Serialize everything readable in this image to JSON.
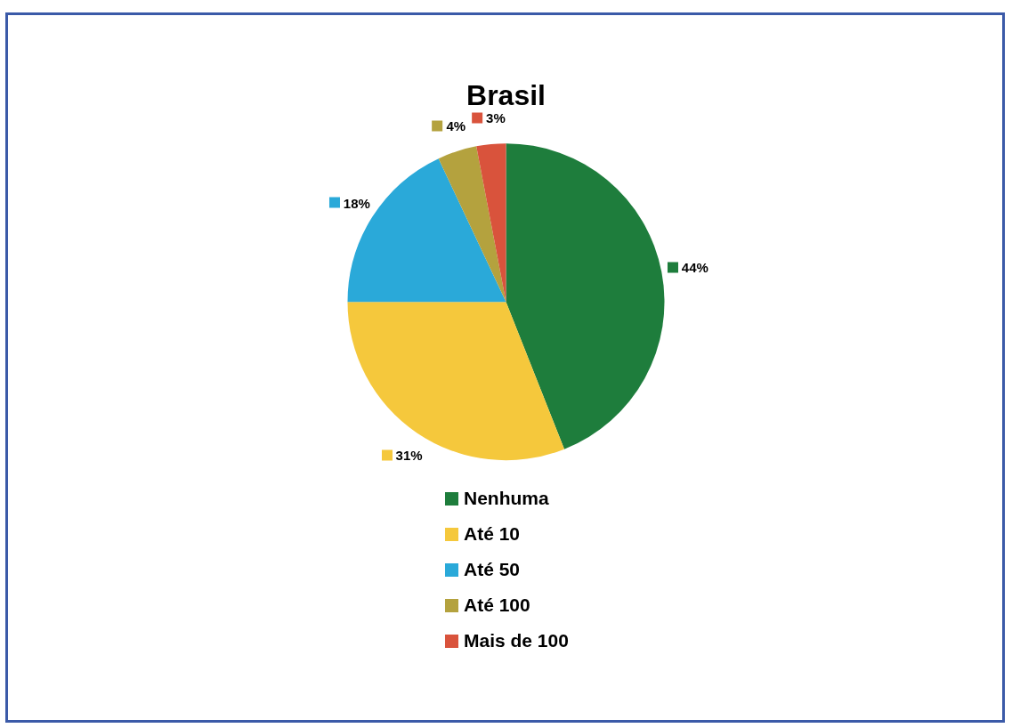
{
  "chart_data": {
    "type": "pie",
    "title": "Brasil",
    "categories": [
      "Nenhuma",
      "Até 10",
      "Até 50",
      "Até 100",
      "Mais de 100"
    ],
    "values": [
      44,
      31,
      18,
      4,
      3
    ],
    "colors": [
      "#1e7d3c",
      "#f5c83c",
      "#2aa9d9",
      "#b4a23e",
      "#d9533c"
    ],
    "value_labels": [
      "44%",
      "31%",
      "18%",
      "4%",
      "3%"
    ],
    "legend": "bottom"
  }
}
